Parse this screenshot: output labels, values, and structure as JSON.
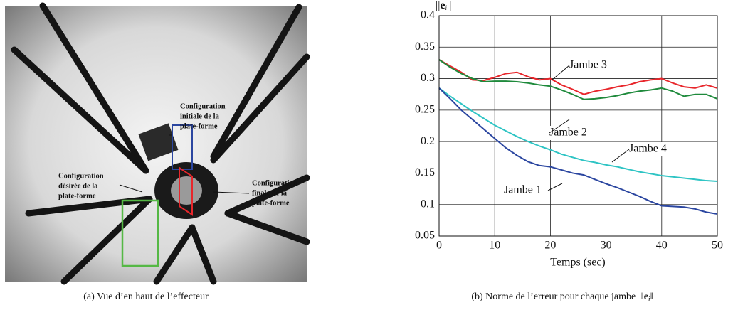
{
  "figure_a": {
    "annotations": [
      {
        "lines": [
          "Configuration",
          "initiale de la",
          "plate-forme"
        ]
      },
      {
        "lines": [
          "Configuration",
          "désirée de la",
          "plate-forme"
        ]
      },
      {
        "lines": [
          "Configuration",
          "finale de la",
          "plate-forme"
        ]
      }
    ],
    "caption": "(a) Vue d’en haut de l’effecteur"
  },
  "chart_data": {
    "type": "line",
    "y_label": [
      "||",
      "e",
      "i",
      "||"
    ],
    "x_label": "Temps (sec)",
    "x": [
      0,
      2,
      4,
      6,
      8,
      10,
      12,
      14,
      16,
      18,
      20,
      22,
      24,
      26,
      28,
      30,
      32,
      34,
      36,
      38,
      40,
      42,
      44,
      46,
      48,
      50
    ],
    "series": [
      {
        "name": "Jambe 3",
        "color": "#e8262b",
        "values": [
          0.33,
          0.32,
          0.31,
          0.298,
          0.297,
          0.302,
          0.308,
          0.31,
          0.303,
          0.298,
          0.3,
          0.29,
          0.283,
          0.275,
          0.28,
          0.283,
          0.287,
          0.29,
          0.295,
          0.298,
          0.3,
          0.293,
          0.287,
          0.285,
          0.29,
          0.285
        ]
      },
      {
        "name": "Jambe 2",
        "color": "#1f8a3c",
        "values": [
          0.33,
          0.318,
          0.308,
          0.3,
          0.295,
          0.296,
          0.296,
          0.295,
          0.293,
          0.29,
          0.288,
          0.282,
          0.275,
          0.267,
          0.268,
          0.27,
          0.273,
          0.277,
          0.28,
          0.282,
          0.285,
          0.28,
          0.272,
          0.275,
          0.275,
          0.268
        ]
      },
      {
        "name": "Jambe 4",
        "color": "#2ec4c4",
        "values": [
          0.285,
          0.272,
          0.26,
          0.248,
          0.237,
          0.226,
          0.217,
          0.208,
          0.2,
          0.193,
          0.187,
          0.18,
          0.175,
          0.17,
          0.167,
          0.163,
          0.16,
          0.156,
          0.152,
          0.149,
          0.146,
          0.144,
          0.142,
          0.14,
          0.138,
          0.137
        ]
      },
      {
        "name": "Jambe 1",
        "color": "#2b46a0",
        "values": [
          0.285,
          0.268,
          0.25,
          0.235,
          0.22,
          0.205,
          0.19,
          0.178,
          0.168,
          0.162,
          0.16,
          0.155,
          0.15,
          0.147,
          0.14,
          0.133,
          0.127,
          0.12,
          0.113,
          0.105,
          0.098,
          0.097,
          0.096,
          0.093,
          0.088,
          0.085
        ]
      }
    ],
    "xlim": [
      0,
      50
    ],
    "xticks": [
      0,
      10,
      20,
      30,
      40,
      50
    ],
    "ylim": [
      0.05,
      0.4
    ],
    "yticks": [
      0.05,
      0.1,
      0.15,
      0.2,
      0.25,
      0.3,
      0.35,
      0.4
    ],
    "grid": true,
    "caption": {
      "text": "(b) Norme de l’erreur pour chaque jambe",
      "symbol": [
        "‖",
        "e",
        "i",
        "‖"
      ]
    }
  }
}
